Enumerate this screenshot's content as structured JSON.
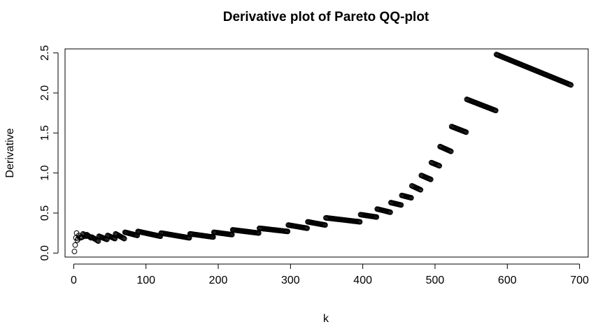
{
  "chart_data": {
    "type": "scatter",
    "title": "Derivative plot of Pareto QQ-plot",
    "xlabel": "k",
    "ylabel": "Derivative",
    "xlim": [
      -12,
      712
    ],
    "ylim": [
      -0.05,
      2.55
    ],
    "x_ticks": [
      0,
      100,
      200,
      300,
      400,
      500,
      600,
      700
    ],
    "x_tick_labels": [
      "0",
      "100",
      "200",
      "300",
      "400",
      "500",
      "600",
      "700"
    ],
    "y_ticks": [
      0.0,
      0.5,
      1.0,
      1.5,
      2.0,
      2.5
    ],
    "y_tick_labels": [
      "0.0",
      "0.5",
      "1.0",
      "1.5",
      "2.0",
      "2.5"
    ],
    "grid": false,
    "marker": "open-circle",
    "color": "#000000",
    "segments": [
      {
        "x_start": 1,
        "x_end": 1,
        "y_start": 0.02,
        "y_end": 0.02
      },
      {
        "x_start": 2,
        "x_end": 2,
        "y_start": 0.1,
        "y_end": 0.1
      },
      {
        "x_start": 3,
        "x_end": 3,
        "y_start": 0.19,
        "y_end": 0.19
      },
      {
        "x_start": 4,
        "x_end": 4,
        "y_start": 0.25,
        "y_end": 0.25
      },
      {
        "x_start": 5,
        "x_end": 6,
        "y_start": 0.16,
        "y_end": 0.18
      },
      {
        "x_start": 7,
        "x_end": 8,
        "y_start": 0.22,
        "y_end": 0.2
      },
      {
        "x_start": 9,
        "x_end": 12,
        "y_start": 0.19,
        "y_end": 0.2
      },
      {
        "x_start": 13,
        "x_end": 17,
        "y_start": 0.24,
        "y_end": 0.21
      },
      {
        "x_start": 18,
        "x_end": 24,
        "y_start": 0.23,
        "y_end": 0.19
      },
      {
        "x_start": 25,
        "x_end": 34,
        "y_start": 0.2,
        "y_end": 0.15
      },
      {
        "x_start": 35,
        "x_end": 46,
        "y_start": 0.21,
        "y_end": 0.17
      },
      {
        "x_start": 47,
        "x_end": 57,
        "y_start": 0.22,
        "y_end": 0.18
      },
      {
        "x_start": 58,
        "x_end": 70,
        "y_start": 0.24,
        "y_end": 0.18
      },
      {
        "x_start": 71,
        "x_end": 88,
        "y_start": 0.26,
        "y_end": 0.22
      },
      {
        "x_start": 89,
        "x_end": 120,
        "y_start": 0.27,
        "y_end": 0.21
      },
      {
        "x_start": 121,
        "x_end": 160,
        "y_start": 0.25,
        "y_end": 0.19
      },
      {
        "x_start": 161,
        "x_end": 193,
        "y_start": 0.24,
        "y_end": 0.2
      },
      {
        "x_start": 194,
        "x_end": 219,
        "y_start": 0.26,
        "y_end": 0.23
      },
      {
        "x_start": 220,
        "x_end": 256,
        "y_start": 0.29,
        "y_end": 0.25
      },
      {
        "x_start": 257,
        "x_end": 296,
        "y_start": 0.31,
        "y_end": 0.27
      },
      {
        "x_start": 297,
        "x_end": 323,
        "y_start": 0.35,
        "y_end": 0.31
      },
      {
        "x_start": 324,
        "x_end": 348,
        "y_start": 0.39,
        "y_end": 0.35
      },
      {
        "x_start": 349,
        "x_end": 396,
        "y_start": 0.44,
        "y_end": 0.39
      },
      {
        "x_start": 397,
        "x_end": 419,
        "y_start": 0.48,
        "y_end": 0.45
      },
      {
        "x_start": 420,
        "x_end": 438,
        "y_start": 0.55,
        "y_end": 0.51
      },
      {
        "x_start": 439,
        "x_end": 453,
        "y_start": 0.63,
        "y_end": 0.6
      },
      {
        "x_start": 454,
        "x_end": 467,
        "y_start": 0.72,
        "y_end": 0.69
      },
      {
        "x_start": 468,
        "x_end": 480,
        "y_start": 0.84,
        "y_end": 0.79
      },
      {
        "x_start": 481,
        "x_end": 494,
        "y_start": 0.97,
        "y_end": 0.92
      },
      {
        "x_start": 495,
        "x_end": 506,
        "y_start": 1.13,
        "y_end": 1.09
      },
      {
        "x_start": 507,
        "x_end": 522,
        "y_start": 1.33,
        "y_end": 1.27
      },
      {
        "x_start": 523,
        "x_end": 543,
        "y_start": 1.58,
        "y_end": 1.51
      },
      {
        "x_start": 544,
        "x_end": 584,
        "y_start": 1.92,
        "y_end": 1.78
      },
      {
        "x_start": 585,
        "x_end": 688,
        "y_start": 2.48,
        "y_end": 2.1
      }
    ]
  }
}
